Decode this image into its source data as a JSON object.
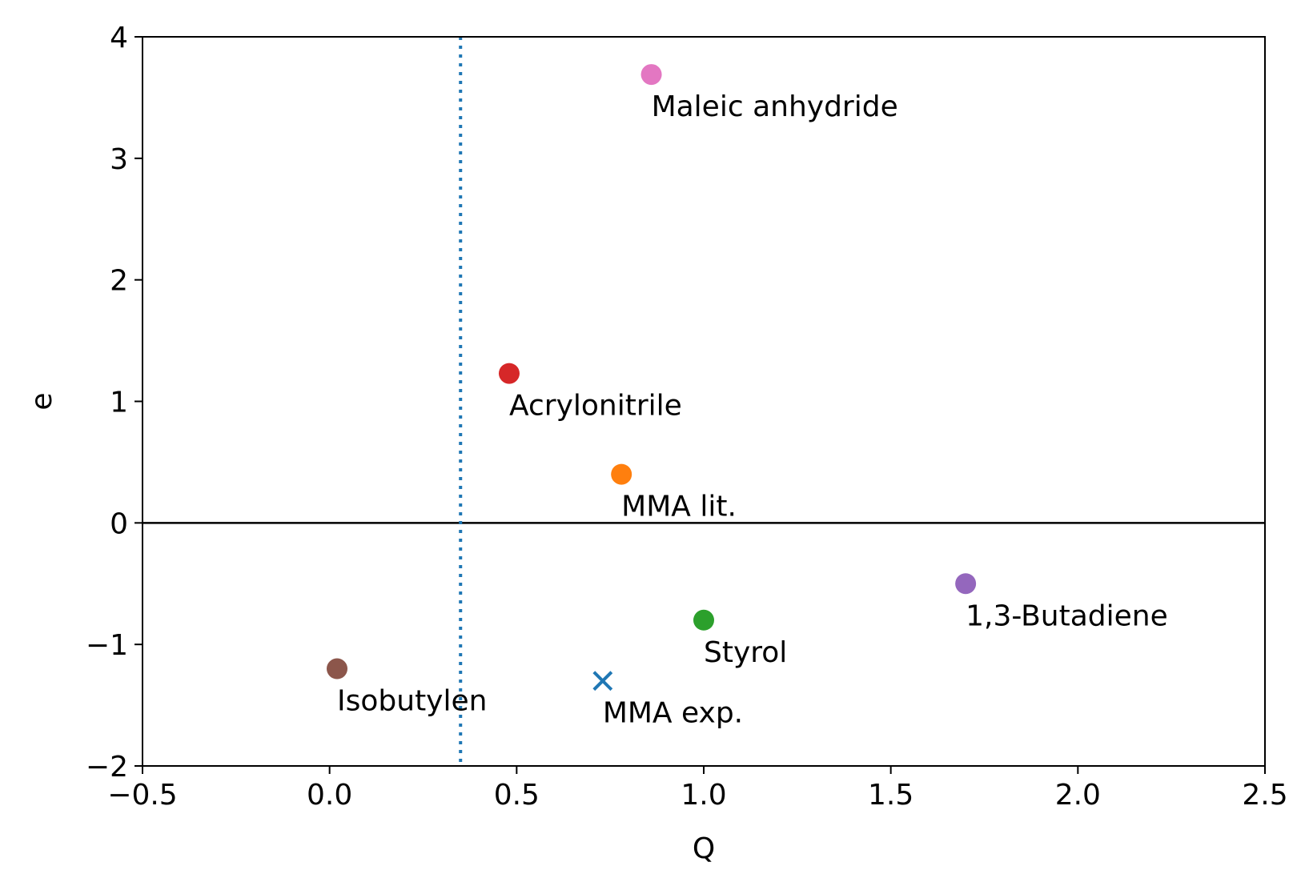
{
  "chart_data": {
    "type": "scatter",
    "xlabel": "Q",
    "ylabel": "e",
    "xlim": [
      -0.5,
      2.5
    ],
    "ylim": [
      -2,
      4
    ],
    "grid": false,
    "x_ticks": [
      {
        "value": -0.5,
        "label": "−0.5"
      },
      {
        "value": 0.0,
        "label": "0.0"
      },
      {
        "value": 0.5,
        "label": "0.5"
      },
      {
        "value": 1.0,
        "label": "1.0"
      },
      {
        "value": 1.5,
        "label": "1.5"
      },
      {
        "value": 2.0,
        "label": "2.0"
      },
      {
        "value": 2.5,
        "label": "2.5"
      }
    ],
    "y_ticks": [
      {
        "value": -2,
        "label": "−2"
      },
      {
        "value": -1,
        "label": "−1"
      },
      {
        "value": 0,
        "label": "0"
      },
      {
        "value": 1,
        "label": "1"
      },
      {
        "value": 2,
        "label": "2"
      },
      {
        "value": 3,
        "label": "3"
      },
      {
        "value": 4,
        "label": "4"
      }
    ],
    "reference_lines": [
      {
        "orientation": "horizontal",
        "value": 0,
        "style": "solid",
        "color": "#000000"
      },
      {
        "orientation": "vertical",
        "value": 0.35,
        "style": "dotted",
        "color": "#1f77b4"
      }
    ],
    "points": [
      {
        "name": "Maleic anhydride",
        "x": 0.86,
        "y": 3.69,
        "color": "#e377c2",
        "marker": "circle"
      },
      {
        "name": "Acrylonitrile",
        "x": 0.48,
        "y": 1.23,
        "color": "#d62728",
        "marker": "circle"
      },
      {
        "name": "MMA lit.",
        "x": 0.78,
        "y": 0.4,
        "color": "#ff7f0e",
        "marker": "circle"
      },
      {
        "name": "1,3-Butadiene",
        "x": 1.7,
        "y": -0.5,
        "color": "#9467bd",
        "marker": "circle"
      },
      {
        "name": "Styrol",
        "x": 1.0,
        "y": -0.8,
        "color": "#2ca02c",
        "marker": "circle"
      },
      {
        "name": "Isobutylen",
        "x": 0.02,
        "y": -1.2,
        "color": "#8c564b",
        "marker": "circle"
      },
      {
        "name": "MMA exp.",
        "x": 0.73,
        "y": -1.3,
        "color": "#1f77b4",
        "marker": "x"
      }
    ]
  }
}
